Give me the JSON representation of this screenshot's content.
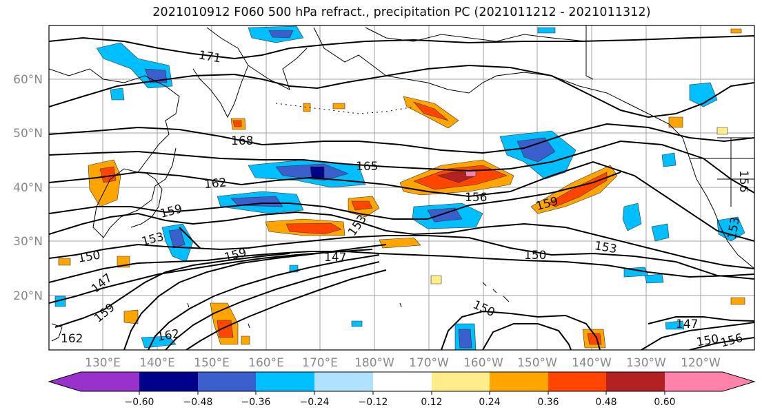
{
  "title": "2021010912 F060 500 hPa refract., precipitation PC (2021011212 - 2021011312)",
  "lat_labels": [
    "60°N",
    "50°N",
    "40°N",
    "30°N",
    "20°N"
  ],
  "lon_labels": [
    "130°E",
    "140°E",
    "150°E",
    "160°E",
    "170°E",
    "180°W",
    "170°W",
    "160°W",
    "150°W",
    "140°W",
    "130°W",
    "120°W"
  ],
  "colorbar": {
    "ticks": [
      "−0.60",
      "−0.48",
      "−0.36",
      "−0.24",
      "−0.12",
      "0.12",
      "0.24",
      "0.36",
      "0.48",
      "0.60"
    ],
    "colors": [
      "#9932cc",
      "#00008b",
      "#3a5fcd",
      "#00bfff",
      "#b0e2ff",
      "#ffffff",
      "#ffec8b",
      "#ffa500",
      "#ff4500",
      "#b22222",
      "#ff82ab"
    ]
  },
  "contour_labels": [
    "171",
    "168",
    "165",
    "162",
    "159",
    "159",
    "159",
    "159",
    "156",
    "156",
    "156",
    "153",
    "153",
    "153",
    "153",
    "150",
    "150",
    "150",
    "150",
    "147",
    "147",
    "147",
    "162",
    "162"
  ]
}
